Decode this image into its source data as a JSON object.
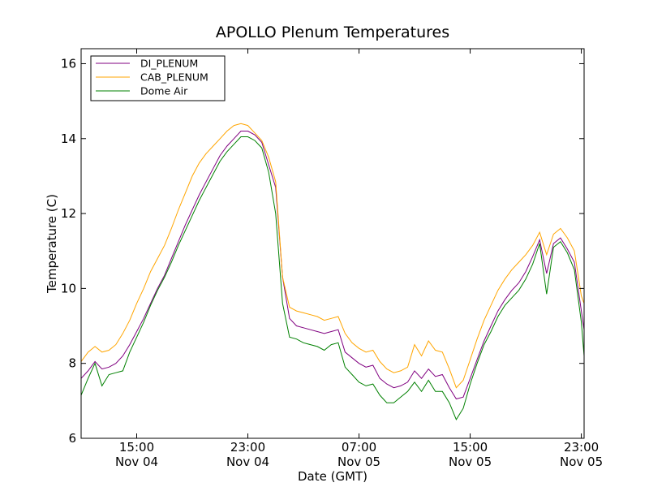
{
  "chart_data": {
    "type": "line",
    "title": "APOLLO Plenum Temperatures",
    "xlabel": "Date (GMT)",
    "ylabel": "Temperature (C)",
    "xlim": [
      11.0,
      47.2
    ],
    "ylim": [
      6,
      16.4
    ],
    "x_unit": "hours since Nov 04 00:00 GMT",
    "x_ticks": [
      {
        "x": 15,
        "line1": "15:00",
        "line2": "Nov 04"
      },
      {
        "x": 23,
        "line1": "23:00",
        "line2": "Nov 04"
      },
      {
        "x": 31,
        "line1": "07:00",
        "line2": "Nov 05"
      },
      {
        "x": 39,
        "line1": "15:00",
        "line2": "Nov 05"
      },
      {
        "x": 47,
        "line1": "23:00",
        "line2": "Nov 05"
      }
    ],
    "y_ticks": [
      6,
      8,
      10,
      12,
      14,
      16
    ],
    "legend_position": "top-left",
    "grid": false,
    "x": [
      11.0,
      11.5,
      12.0,
      12.5,
      13.0,
      13.5,
      14.0,
      14.5,
      15.0,
      15.5,
      16.0,
      16.5,
      17.0,
      17.5,
      18.0,
      18.5,
      19.0,
      19.5,
      20.0,
      20.5,
      21.0,
      21.5,
      22.0,
      22.5,
      23.0,
      23.5,
      24.0,
      24.5,
      25.0,
      25.5,
      26.0,
      26.5,
      27.0,
      27.5,
      28.0,
      28.5,
      29.0,
      29.5,
      30.0,
      30.5,
      31.0,
      31.5,
      32.0,
      32.5,
      33.0,
      33.5,
      34.0,
      34.5,
      35.0,
      35.5,
      36.0,
      36.5,
      37.0,
      37.5,
      38.0,
      38.5,
      39.0,
      39.5,
      40.0,
      40.5,
      41.0,
      41.5,
      42.0,
      42.5,
      43.0,
      43.5,
      44.0,
      44.5,
      45.0,
      45.5,
      46.0,
      46.5,
      47.0,
      47.2
    ],
    "series": [
      {
        "name": "DI_PLENUM",
        "color": "#800080",
        "values": [
          7.6,
          7.8,
          8.05,
          7.85,
          7.9,
          8.0,
          8.2,
          8.5,
          8.85,
          9.2,
          9.6,
          10.0,
          10.35,
          10.8,
          11.25,
          11.7,
          12.1,
          12.5,
          12.85,
          13.2,
          13.55,
          13.8,
          14.0,
          14.2,
          14.2,
          14.1,
          13.9,
          13.3,
          12.7,
          10.3,
          9.2,
          9.0,
          8.95,
          8.9,
          8.85,
          8.8,
          8.85,
          8.9,
          8.3,
          8.15,
          8.0,
          7.9,
          7.95,
          7.6,
          7.45,
          7.35,
          7.4,
          7.5,
          7.8,
          7.6,
          7.85,
          7.65,
          7.7,
          7.35,
          7.05,
          7.1,
          7.6,
          8.1,
          8.6,
          9.0,
          9.4,
          9.7,
          9.95,
          10.15,
          10.45,
          10.85,
          11.3,
          10.4,
          11.2,
          11.35,
          11.05,
          10.7,
          9.4,
          8.9
        ]
      },
      {
        "name": "CAB_PLENUM",
        "color": "#FFA500",
        "values": [
          8.05,
          8.3,
          8.45,
          8.3,
          8.35,
          8.5,
          8.8,
          9.15,
          9.6,
          10.0,
          10.45,
          10.8,
          11.15,
          11.6,
          12.1,
          12.55,
          13.0,
          13.35,
          13.6,
          13.8,
          14.0,
          14.2,
          14.35,
          14.4,
          14.35,
          14.15,
          13.95,
          13.5,
          12.85,
          10.3,
          9.5,
          9.4,
          9.35,
          9.3,
          9.25,
          9.15,
          9.2,
          9.25,
          8.8,
          8.55,
          8.4,
          8.3,
          8.35,
          8.05,
          7.85,
          7.75,
          7.8,
          7.9,
          8.5,
          8.2,
          8.6,
          8.35,
          8.3,
          7.85,
          7.35,
          7.55,
          8.1,
          8.65,
          9.15,
          9.55,
          9.95,
          10.25,
          10.5,
          10.7,
          10.9,
          11.15,
          11.5,
          10.9,
          11.45,
          11.6,
          11.35,
          11.0,
          9.8,
          9.6
        ]
      },
      {
        "name": "Dome Air",
        "color": "#008000",
        "values": [
          7.15,
          7.6,
          8.0,
          7.4,
          7.7,
          7.75,
          7.8,
          8.3,
          8.7,
          9.1,
          9.55,
          9.95,
          10.3,
          10.7,
          11.15,
          11.55,
          11.95,
          12.35,
          12.7,
          13.05,
          13.4,
          13.65,
          13.85,
          14.05,
          14.05,
          13.95,
          13.75,
          13.1,
          12.0,
          9.6,
          8.7,
          8.65,
          8.55,
          8.5,
          8.45,
          8.35,
          8.5,
          8.55,
          7.9,
          7.7,
          7.5,
          7.4,
          7.45,
          7.15,
          6.95,
          6.95,
          7.1,
          7.25,
          7.5,
          7.25,
          7.55,
          7.25,
          7.25,
          6.95,
          6.5,
          6.8,
          7.45,
          8.0,
          8.5,
          8.85,
          9.25,
          9.55,
          9.75,
          9.95,
          10.25,
          10.65,
          11.2,
          9.85,
          11.1,
          11.25,
          10.95,
          10.5,
          9.1,
          8.2
        ]
      }
    ]
  }
}
